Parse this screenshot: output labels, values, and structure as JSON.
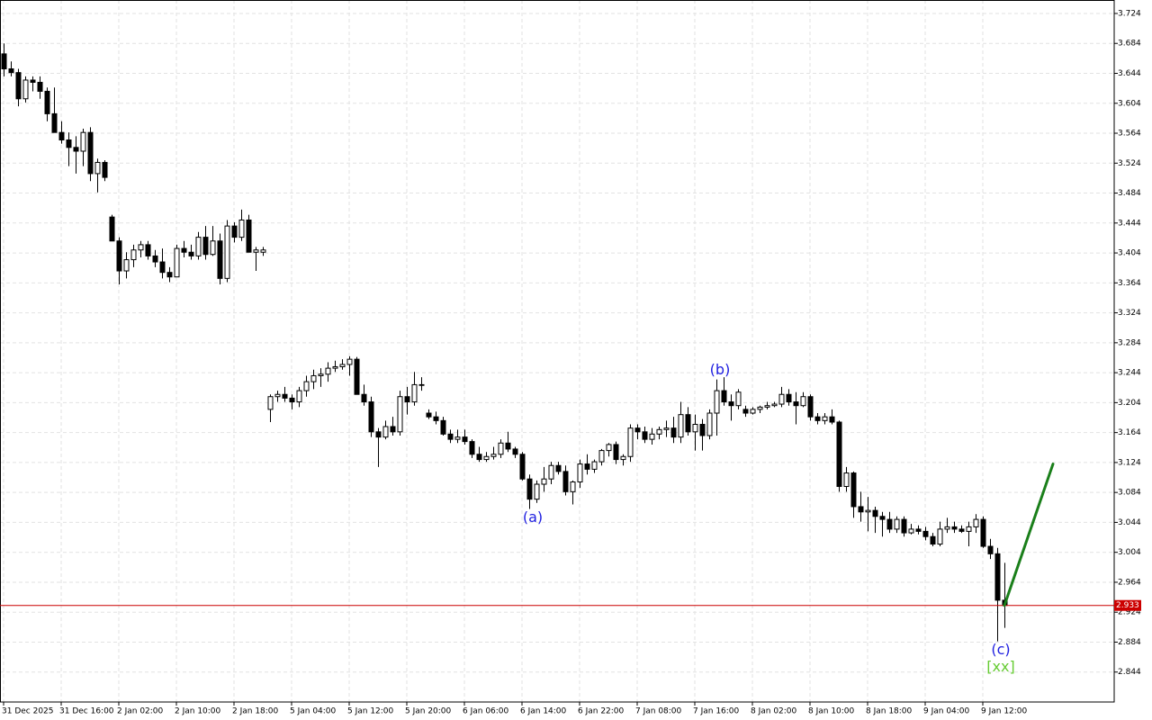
{
  "chart_data": {
    "type": "candlestick",
    "categories": [
      "31 Dec 2025",
      null,
      null,
      null,
      null,
      null,
      null,
      null,
      "31 Dec 16:00",
      null,
      null,
      null,
      null,
      null,
      null,
      null,
      "2 Jan 02:00",
      null,
      null,
      null,
      null,
      null,
      null,
      null,
      "2 Jan 10:00",
      null,
      null,
      null,
      null,
      null,
      null,
      null,
      "2 Jan 18:00",
      null,
      null,
      null,
      null,
      null,
      null,
      null,
      "5 Jan 04:00",
      null,
      null,
      null,
      null,
      null,
      null,
      null,
      "5 Jan 12:00",
      null,
      null,
      null,
      null,
      null,
      null,
      null,
      "5 Jan 20:00",
      null,
      null,
      null,
      null,
      null,
      null,
      null,
      "6 Jan 06:00",
      null,
      null,
      null,
      null,
      null,
      null,
      null,
      "6 Jan 14:00",
      null,
      null,
      null,
      null,
      null,
      null,
      null,
      "6 Jan 22:00",
      null,
      null,
      null,
      null,
      null,
      null,
      null,
      "7 Jan 08:00",
      null,
      null,
      null,
      null,
      null,
      null,
      null,
      "7 Jan 16:00",
      null,
      null,
      null,
      null,
      null,
      null,
      null,
      "8 Jan 02:00",
      null,
      null,
      null,
      null,
      null,
      null,
      null,
      "8 Jan 10:00",
      null,
      null,
      null,
      null,
      null,
      null,
      null,
      "8 Jan 18:00",
      null,
      null,
      null,
      null,
      null,
      null,
      null,
      "9 Jan 04:00",
      null,
      null,
      null,
      null,
      null,
      null,
      null,
      "9 Jan 12:00",
      null,
      null,
      null
    ],
    "open": [
      3.67,
      3.65,
      3.645,
      3.61,
      3.635,
      3.632,
      3.62,
      3.59,
      3.565,
      3.555,
      3.545,
      3.54,
      3.565,
      3.51,
      3.525,
      3.452,
      3.42,
      3.38,
      3.395,
      3.408,
      3.415,
      3.4,
      3.392,
      3.378,
      3.372,
      3.41,
      3.405,
      3.4,
      3.425,
      3.402,
      3.42,
      3.37,
      3.44,
      3.425,
      3.448,
      3.405,
      3.405,
      3.195,
      3.212,
      3.215,
      3.21,
      3.205,
      3.22,
      3.232,
      3.24,
      3.242,
      3.25,
      3.252,
      3.255,
      3.262,
      3.215,
      3.205,
      3.165,
      3.158,
      3.172,
      3.165,
      3.212,
      3.205,
      3.228,
      3.19,
      3.185,
      3.18,
      3.162,
      3.155,
      3.158,
      3.152,
      3.135,
      3.128,
      3.132,
      3.135,
      3.15,
      3.142,
      3.135,
      3.102,
      3.075,
      3.095,
      3.102,
      3.12,
      3.112,
      3.085,
      3.098,
      3.122,
      3.115,
      3.125,
      3.14,
      3.148,
      3.128,
      3.132,
      3.17,
      3.165,
      3.155,
      3.162,
      3.168,
      3.17,
      3.158,
      3.188,
      3.165,
      3.175,
      3.16,
      3.19,
      3.22,
      3.205,
      3.2,
      3.195,
      3.19,
      3.195,
      3.198,
      3.2,
      3.202,
      3.215,
      3.205,
      3.2,
      3.212,
      3.185,
      3.18,
      3.185,
      3.178,
      3.092,
      3.11,
      3.065,
      3.058,
      3.06,
      3.052,
      3.048,
      3.035,
      3.048,
      3.03,
      3.035,
      3.032,
      3.025,
      3.015,
      3.035,
      3.038,
      3.035,
      3.032,
      3.038,
      3.048,
      3.012,
      3.002,
      2.94
    ],
    "high": [
      3.684,
      3.66,
      3.65,
      3.64,
      3.64,
      3.64,
      3.625,
      3.625,
      3.58,
      3.565,
      3.56,
      3.57,
      3.572,
      3.53,
      3.528,
      3.455,
      3.425,
      3.405,
      3.415,
      3.42,
      3.42,
      3.408,
      3.41,
      3.385,
      3.415,
      3.42,
      3.415,
      3.432,
      3.44,
      3.44,
      3.43,
      3.448,
      3.445,
      3.462,
      3.455,
      3.412,
      3.412,
      3.215,
      3.22,
      3.225,
      3.215,
      3.225,
      3.24,
      3.248,
      3.25,
      3.258,
      3.26,
      3.262,
      3.266,
      3.265,
      3.228,
      3.212,
      3.17,
      3.18,
      3.185,
      3.22,
      3.225,
      3.245,
      3.238,
      3.195,
      3.192,
      3.185,
      3.168,
      3.168,
      3.168,
      3.155,
      3.145,
      3.138,
      3.145,
      3.155,
      3.165,
      3.145,
      3.138,
      3.108,
      3.1,
      3.118,
      3.125,
      3.125,
      3.12,
      3.1,
      3.128,
      3.135,
      3.128,
      3.142,
      3.15,
      3.152,
      3.135,
      3.175,
      3.175,
      3.172,
      3.17,
      3.172,
      3.18,
      3.185,
      3.205,
      3.198,
      3.188,
      3.182,
      3.195,
      3.235,
      3.238,
      3.215,
      3.222,
      3.2,
      3.198,
      3.2,
      3.205,
      3.205,
      3.225,
      3.222,
      3.218,
      3.218,
      3.215,
      3.19,
      3.19,
      3.195,
      3.18,
      3.118,
      3.112,
      3.085,
      3.078,
      3.065,
      3.058,
      3.058,
      3.052,
      3.052,
      3.042,
      3.04,
      3.038,
      3.03,
      3.045,
      3.05,
      3.045,
      3.04,
      3.045,
      3.055,
      3.052,
      3.022,
      3.01,
      2.99
    ],
    "low": [
      3.64,
      3.64,
      3.6,
      3.605,
      3.62,
      3.61,
      3.58,
      3.565,
      3.55,
      3.52,
      3.51,
      3.52,
      3.5,
      3.485,
      3.5,
      3.42,
      3.362,
      3.37,
      3.385,
      3.398,
      3.395,
      3.385,
      3.37,
      3.365,
      3.372,
      3.398,
      3.395,
      3.395,
      3.395,
      3.4,
      3.362,
      3.365,
      3.418,
      3.42,
      3.405,
      3.38,
      3.4,
      3.178,
      3.205,
      3.205,
      3.195,
      3.198,
      3.212,
      3.222,
      3.225,
      3.232,
      3.245,
      3.248,
      3.24,
      3.215,
      3.2,
      3.158,
      3.118,
      3.155,
      3.16,
      3.16,
      3.188,
      3.2,
      3.22,
      3.182,
      3.175,
      3.16,
      3.15,
      3.15,
      3.148,
      3.13,
      3.125,
      3.125,
      3.128,
      3.13,
      3.138,
      3.13,
      3.1,
      3.062,
      3.07,
      3.085,
      3.095,
      3.108,
      3.08,
      3.068,
      3.09,
      3.108,
      3.11,
      3.12,
      3.132,
      3.122,
      3.12,
      3.125,
      3.155,
      3.15,
      3.148,
      3.155,
      3.158,
      3.15,
      3.15,
      3.16,
      3.14,
      3.14,
      3.155,
      3.16,
      3.2,
      3.18,
      3.195,
      3.185,
      3.188,
      3.19,
      3.195,
      3.198,
      3.198,
      3.2,
      3.175,
      3.198,
      3.18,
      3.175,
      3.175,
      3.175,
      3.085,
      3.085,
      3.05,
      3.045,
      3.032,
      3.03,
      3.025,
      3.03,
      3.03,
      3.025,
      3.028,
      3.028,
      3.02,
      3.012,
      3.012,
      3.03,
      3.03,
      3.03,
      3.012,
      3.03,
      3.01,
      2.995,
      2.885,
      2.903
    ],
    "close": [
      3.65,
      3.645,
      3.61,
      3.635,
      3.632,
      3.62,
      3.59,
      3.565,
      3.555,
      3.545,
      3.54,
      3.565,
      3.51,
      3.525,
      3.505,
      3.42,
      3.38,
      3.395,
      3.408,
      3.415,
      3.4,
      3.392,
      3.378,
      3.372,
      3.41,
      3.405,
      3.4,
      3.425,
      3.402,
      3.42,
      3.37,
      3.44,
      3.425,
      3.448,
      3.405,
      3.408,
      3.408,
      3.212,
      3.215,
      3.21,
      3.205,
      3.22,
      3.232,
      3.24,
      3.242,
      3.25,
      3.252,
      3.255,
      3.262,
      3.215,
      3.205,
      3.165,
      3.158,
      3.172,
      3.165,
      3.212,
      3.205,
      3.228,
      3.228,
      3.185,
      3.18,
      3.162,
      3.155,
      3.158,
      3.152,
      3.135,
      3.128,
      3.132,
      3.135,
      3.15,
      3.142,
      3.135,
      3.102,
      3.075,
      3.095,
      3.102,
      3.12,
      3.112,
      3.085,
      3.098,
      3.122,
      3.115,
      3.125,
      3.14,
      3.148,
      3.128,
      3.132,
      3.17,
      3.165,
      3.155,
      3.162,
      3.168,
      3.17,
      3.158,
      3.188,
      3.165,
      3.175,
      3.16,
      3.19,
      3.22,
      3.205,
      3.2,
      3.218,
      3.19,
      3.195,
      3.198,
      3.2,
      3.202,
      3.215,
      3.205,
      3.2,
      3.212,
      3.185,
      3.18,
      3.185,
      3.178,
      3.092,
      3.11,
      3.065,
      3.058,
      3.06,
      3.052,
      3.048,
      3.035,
      3.048,
      3.03,
      3.035,
      3.032,
      3.025,
      3.015,
      3.035,
      3.038,
      3.035,
      3.032,
      3.038,
      3.048,
      3.012,
      3.002,
      2.94,
      2.933
    ],
    "up_color": "#ffffff",
    "down_color": "#000000",
    "xlim": [
      -0.5,
      154.25
    ],
    "ylim": [
      2.804,
      3.742
    ],
    "yticks": [
      2.844,
      2.884,
      2.924,
      2.964,
      3.004,
      3.044,
      3.084,
      3.124,
      3.164,
      3.204,
      3.244,
      3.284,
      3.324,
      3.364,
      3.404,
      3.444,
      3.484,
      3.524,
      3.564,
      3.604,
      3.644,
      3.684,
      3.724
    ],
    "grid": true,
    "current_price": 2.933,
    "current_price_color": "#cc0000",
    "projection": {
      "x": [
        139,
        145.75
      ],
      "y": [
        2.933,
        3.122
      ],
      "color": "#1a7f1a"
    },
    "annotations": [
      {
        "text": "(a)",
        "candle": 73,
        "side": "below",
        "color": "#2020e0"
      },
      {
        "text": "(b)",
        "candle": 99,
        "side": "above",
        "color": "#2020e0"
      },
      {
        "text": "(c)",
        "candle": 138,
        "side": "below",
        "color": "#2020e0"
      },
      {
        "text": "[xx]",
        "candle": 138,
        "side": "below",
        "color": "#66cc33"
      }
    ]
  }
}
